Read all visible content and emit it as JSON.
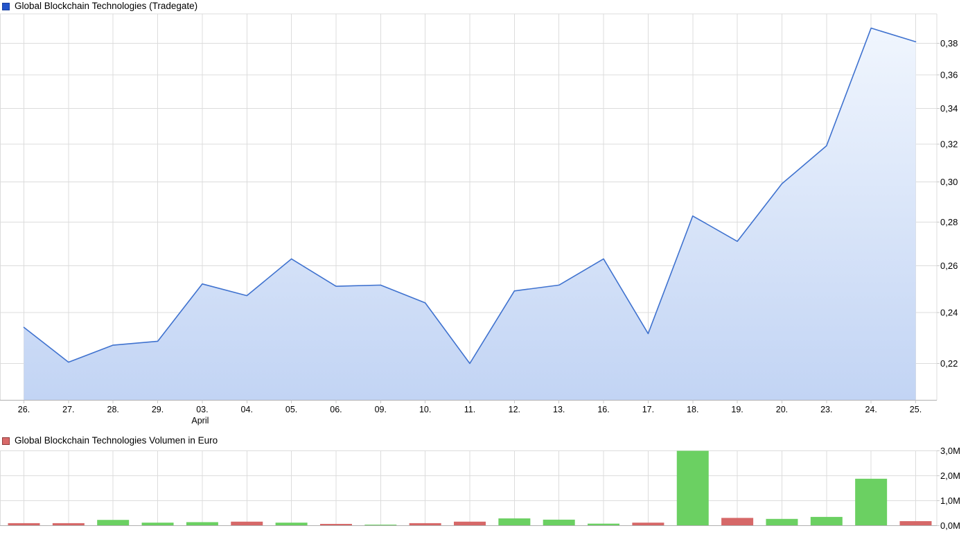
{
  "price_chart": {
    "legend_label": "Global Blockchain Technologies (Tradegate)",
    "swatch_color": "#2355cb",
    "swatch_border": "#19409f"
  },
  "volume_chart": {
    "legend_label": "Global Blockchain Technologies Volumen in Euro",
    "swatch_color": "#d96a6a",
    "swatch_border": "#8e3c3c"
  },
  "chart_data": [
    {
      "type": "area",
      "title": "Global Blockchain Technologies (Tradegate)",
      "x_tick_labels": [
        "26.",
        "27.",
        "28.",
        "29.",
        "03.",
        "04.",
        "05.",
        "06.",
        "09.",
        "10.",
        "11.",
        "12.",
        "13.",
        "16.",
        "17.",
        "18.",
        "19.",
        "20.",
        "23.",
        "24.",
        "25."
      ],
      "month_label": "April",
      "month_label_under": "03.",
      "series": [
        {
          "name": "Global Blockchain Technologies (Tradegate)",
          "values": [
            0.234,
            0.2205,
            0.227,
            0.2285,
            0.252,
            0.247,
            0.263,
            0.251,
            0.2515,
            0.244,
            0.22,
            0.249,
            0.2515,
            0.263,
            0.2315,
            0.283,
            0.271,
            0.299,
            0.319,
            0.39,
            0.381
          ]
        }
      ],
      "y_axis": {
        "side": "right",
        "scale": "log",
        "tick_values": [
          0.38,
          0.36,
          0.34,
          0.32,
          0.3,
          0.28,
          0.26,
          0.24,
          0.22
        ],
        "tick_labels": [
          "0,38",
          "0,36",
          "0,34",
          "0,32",
          "0,30",
          "0,28",
          "0,26",
          "0,24",
          "0,22"
        ],
        "range": [
          0.213,
          0.397
        ]
      },
      "grid": true,
      "legend_position": "top-left",
      "line_color": "#3f72cf",
      "area_gradient_top": "#f2f7fe",
      "area_gradient_bottom": "#c2d4f4"
    },
    {
      "type": "bar",
      "title": "Global Blockchain Technologies Volumen in Euro",
      "categories": [
        "26.",
        "27.",
        "28.",
        "29.",
        "03.",
        "04.",
        "05.",
        "06.",
        "09.",
        "10.",
        "11.",
        "12.",
        "13.",
        "16.",
        "17.",
        "18.",
        "19.",
        "20.",
        "23.",
        "24.",
        "25."
      ],
      "value_unit": "million EUR",
      "values": [
        0.1,
        0.1,
        0.23,
        0.12,
        0.14,
        0.16,
        0.12,
        0.07,
        0.04,
        0.1,
        0.16,
        0.29,
        0.24,
        0.08,
        0.12,
        3.0,
        0.31,
        0.27,
        0.35,
        1.88,
        0.18
      ],
      "directions": [
        "down",
        "down",
        "up",
        "up",
        "up",
        "down",
        "up",
        "down",
        "up",
        "down",
        "down",
        "up",
        "up",
        "up",
        "down",
        "up",
        "down",
        "up",
        "up",
        "up",
        "down"
      ],
      "up_color": "#6bd062",
      "down_color": "#d66868",
      "y_axis": {
        "side": "right",
        "scale": "linear",
        "tick_values": [
          3,
          2,
          1,
          0
        ],
        "tick_labels": [
          "3,0M",
          "2,0M",
          "1,0M",
          "0,0M"
        ],
        "range": [
          0,
          3.0
        ]
      },
      "grid": true,
      "legend_position": "top-left"
    }
  ]
}
